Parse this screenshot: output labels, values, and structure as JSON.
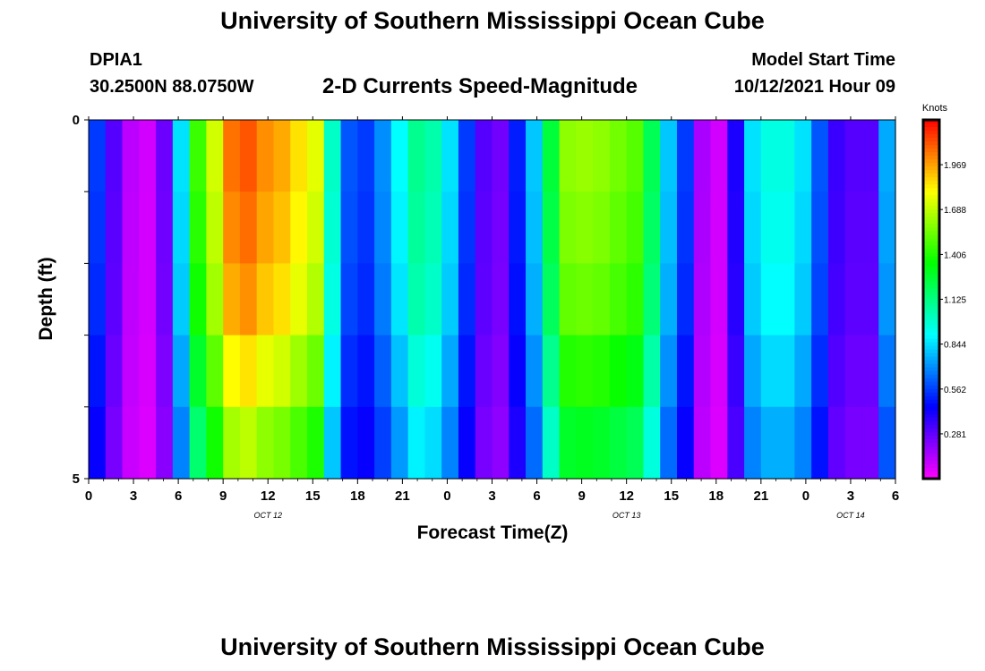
{
  "header": {
    "title": "University of Southern Mississippi Ocean Cube",
    "station": "DPIA1",
    "coords": "30.2500N  88.0750W",
    "subtitle": "2-D Currents Speed-Magnitude",
    "model_label": "Model Start Time",
    "model_date": "10/12/2021 Hour 09"
  },
  "footer": {
    "title": "University of Southern Mississippi Ocean Cube"
  },
  "colors": {
    "colormap": [
      "#ff00ff",
      "#8000ff",
      "#0000ff",
      "#0080ff",
      "#00ffff",
      "#00ff80",
      "#00ff00",
      "#80ff00",
      "#ffff00",
      "#ff8000",
      "#ff0000"
    ]
  },
  "chart_data": {
    "type": "heatmap",
    "xlabel": "Forecast Time(Z)",
    "ylabel": "Depth (ft)",
    "x_tick_labels": [
      "0",
      "3",
      "6",
      "9",
      "12",
      "15",
      "18",
      "21",
      "0",
      "3",
      "6",
      "9",
      "12",
      "15",
      "18",
      "21",
      "0",
      "3",
      "6"
    ],
    "date_labels": [
      {
        "text": "OCT 12",
        "at_hour": 12
      },
      {
        "text": "OCT 13",
        "at_hour": 36
      },
      {
        "text": "OCT 14",
        "at_hour": 51
      }
    ],
    "x_range_hours": [
      0,
      54
    ],
    "y_tick_labels": [
      "0",
      "5"
    ],
    "ylim": [
      0,
      5
    ],
    "depth_levels": [
      0.5,
      1.5,
      2.5,
      3.5,
      4.5
    ],
    "colorbar": {
      "label": "Knots",
      "range": [
        0,
        2.25
      ],
      "tick_labels": [
        "1.969",
        "1.688",
        "1.406",
        "1.125",
        "0.844",
        "0.562",
        "0.281"
      ]
    },
    "speed_at_surface": [
      0.55,
      0.3,
      0.12,
      0.08,
      0.26,
      0.85,
      1.45,
      1.72,
      2.05,
      2.1,
      2.0,
      1.95,
      1.85,
      1.75,
      1.0,
      0.6,
      0.55,
      0.7,
      0.9,
      1.1,
      1.05,
      0.85,
      0.55,
      0.3,
      0.25,
      0.5,
      0.8,
      1.25,
      1.6,
      1.62,
      1.6,
      1.55,
      1.5,
      1.2,
      0.8,
      0.55,
      0.15,
      0.08,
      0.4,
      0.85,
      0.95,
      0.95,
      0.85,
      0.6,
      0.35,
      0.3,
      0.3,
      0.75
    ],
    "depth_scale": [
      1.0,
      0.98,
      0.95,
      0.88,
      0.8
    ]
  }
}
